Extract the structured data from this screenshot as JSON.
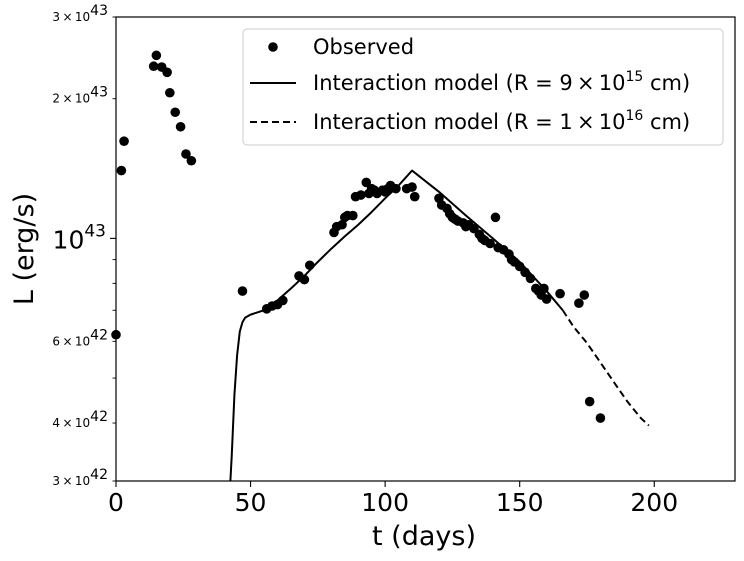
{
  "chart_data": {
    "type": "scatter",
    "title": "",
    "xlabel": "t (days)",
    "ylabel": "L (erg/s)",
    "xlim": [
      0,
      230
    ],
    "ylim": [
      3e+42,
      3e+43
    ],
    "yscale": "log",
    "x_ticks": [
      {
        "value": 0,
        "label": "0"
      },
      {
        "value": 50,
        "label": "50"
      },
      {
        "value": 100,
        "label": "100"
      },
      {
        "value": 150,
        "label": "150"
      },
      {
        "value": 200,
        "label": "200"
      }
    ],
    "y_ticks_minor_labeled": [
      {
        "value": 3e+42,
        "mant": "3",
        "exp": "42"
      },
      {
        "value": 4e+42,
        "mant": "4",
        "exp": "42"
      },
      {
        "value": 6e+42,
        "mant": "6",
        "exp": "42"
      },
      {
        "value": 2e+43,
        "mant": "2",
        "exp": "43"
      },
      {
        "value": 3e+43,
        "mant": "3",
        "exp": "43"
      }
    ],
    "y_ticks_minor_unlabeled": [
      5e+42,
      7e+42,
      8e+42,
      9e+42
    ],
    "y_tick_major": {
      "value": 1e+43,
      "base": "10",
      "exp": "43"
    },
    "series": [
      {
        "name": "Observed",
        "kind": "scatter",
        "points": [
          [
            0,
            6.2e+42
          ],
          [
            2,
            1.4e+43
          ],
          [
            3,
            1.62e+43
          ],
          [
            14,
            2.35e+43
          ],
          [
            15,
            2.48e+43
          ],
          [
            17,
            2.34e+43
          ],
          [
            19,
            2.28e+43
          ],
          [
            20,
            2.06e+43
          ],
          [
            22,
            1.87e+43
          ],
          [
            24,
            1.74e+43
          ],
          [
            26,
            1.52e+43
          ],
          [
            28,
            1.47e+43
          ],
          [
            47,
            7.7e+42
          ],
          [
            56,
            7.05e+42
          ],
          [
            58,
            7.15e+42
          ],
          [
            60,
            7.2e+42
          ],
          [
            62,
            7.35e+42
          ],
          [
            68,
            8.3e+42
          ],
          [
            70,
            8.15e+42
          ],
          [
            72,
            8.75e+42
          ],
          [
            81,
            1.03e+43
          ],
          [
            82,
            1.06e+43
          ],
          [
            84,
            1.07e+43
          ],
          [
            85,
            1.11e+43
          ],
          [
            86,
            1.12e+43
          ],
          [
            88,
            1.12e+43
          ],
          [
            89,
            1.23e+43
          ],
          [
            91,
            1.24e+43
          ],
          [
            93,
            1.32e+43
          ],
          [
            94,
            1.25e+43
          ],
          [
            95,
            1.28e+43
          ],
          [
            96,
            1.27e+43
          ],
          [
            97,
            1.25e+43
          ],
          [
            99,
            1.27e+43
          ],
          [
            100,
            1.26e+43
          ],
          [
            101,
            1.28e+43
          ],
          [
            102,
            1.3e+43
          ],
          [
            104,
            1.28e+43
          ],
          [
            108,
            1.28e+43
          ],
          [
            110,
            1.29e+43
          ],
          [
            111,
            1.23e+43
          ],
          [
            120,
            1.22e+43
          ],
          [
            121,
            1.18e+43
          ],
          [
            123,
            1.16e+43
          ],
          [
            124,
            1.13e+43
          ],
          [
            125,
            1.11e+43
          ],
          [
            126,
            1.1e+43
          ],
          [
            127,
            1.09e+43
          ],
          [
            129,
            1.08e+43
          ],
          [
            130,
            1.06e+43
          ],
          [
            131,
            1.07e+43
          ],
          [
            133,
            1.05e+43
          ],
          [
            135,
            1.02e+43
          ],
          [
            136,
            1e+43
          ],
          [
            137,
            9.9e+42
          ],
          [
            139,
            9.75e+42
          ],
          [
            141,
            1.11e+43
          ],
          [
            142,
            9.55e+42
          ],
          [
            144,
            9.45e+42
          ],
          [
            146,
            9.25e+42
          ],
          [
            147,
            9e+42
          ],
          [
            148,
            8.9e+42
          ],
          [
            150,
            8.7e+42
          ],
          [
            152,
            8.45e+42
          ],
          [
            154,
            8.2e+42
          ],
          [
            156,
            7.8e+42
          ],
          [
            157,
            7.7e+42
          ],
          [
            158,
            7.55e+42
          ],
          [
            159,
            7.8e+42
          ],
          [
            160,
            7.4e+42
          ],
          [
            165,
            7.6e+42
          ],
          [
            172,
            7.25e+42
          ],
          [
            174,
            7.55e+42
          ],
          [
            176,
            4.45e+42
          ],
          [
            180,
            4.1e+42
          ]
        ]
      },
      {
        "name": "Interaction model (R = 9×10^15 cm)",
        "kind": "line-solid",
        "points": [
          [
            42.5,
            3e+42
          ],
          [
            43,
            3.4e+42
          ],
          [
            44,
            4.6e+42
          ],
          [
            45,
            5.6e+42
          ],
          [
            46,
            6.3e+42
          ],
          [
            47,
            6.6e+42
          ],
          [
            48,
            6.75e+42
          ],
          [
            50,
            6.85e+42
          ],
          [
            55,
            7e+42
          ],
          [
            60,
            7.35e+42
          ],
          [
            65,
            7.8e+42
          ],
          [
            70,
            8.3e+42
          ],
          [
            75,
            8.9e+42
          ],
          [
            80,
            9.5e+42
          ],
          [
            85,
            1.01e+43
          ],
          [
            90,
            1.07e+43
          ],
          [
            95,
            1.14e+43
          ],
          [
            100,
            1.22e+43
          ],
          [
            105,
            1.3e+43
          ],
          [
            110,
            1.4e+43
          ],
          [
            120,
            1.26e+43
          ],
          [
            130,
            1.12e+43
          ],
          [
            140,
            1e+43
          ],
          [
            150,
            8.9e+42
          ],
          [
            160,
            7.7e+42
          ],
          [
            166,
            7e+42
          ]
        ]
      },
      {
        "name": "Interaction model (R = 1×10^16 cm)",
        "kind": "line-dashed",
        "points": [
          [
            166,
            7e+42
          ],
          [
            170,
            6.45e+42
          ],
          [
            175,
            5.95e+42
          ],
          [
            180,
            5.4e+42
          ],
          [
            185,
            4.9e+42
          ],
          [
            190,
            4.45e+42
          ],
          [
            195,
            4.1e+42
          ],
          [
            198,
            3.95e+42
          ]
        ]
      }
    ],
    "legend": {
      "location": "upper-right",
      "entries": [
        {
          "label": "Observed",
          "marker": "dot"
        },
        {
          "label_pre": "Interaction model (R = 9 × 10",
          "exp": "15",
          "label_post": " cm)",
          "marker": "solid"
        },
        {
          "label_pre": "Interaction model (R = 1 × 10",
          "exp": "16",
          "label_post": " cm)",
          "marker": "dashed"
        }
      ]
    }
  }
}
